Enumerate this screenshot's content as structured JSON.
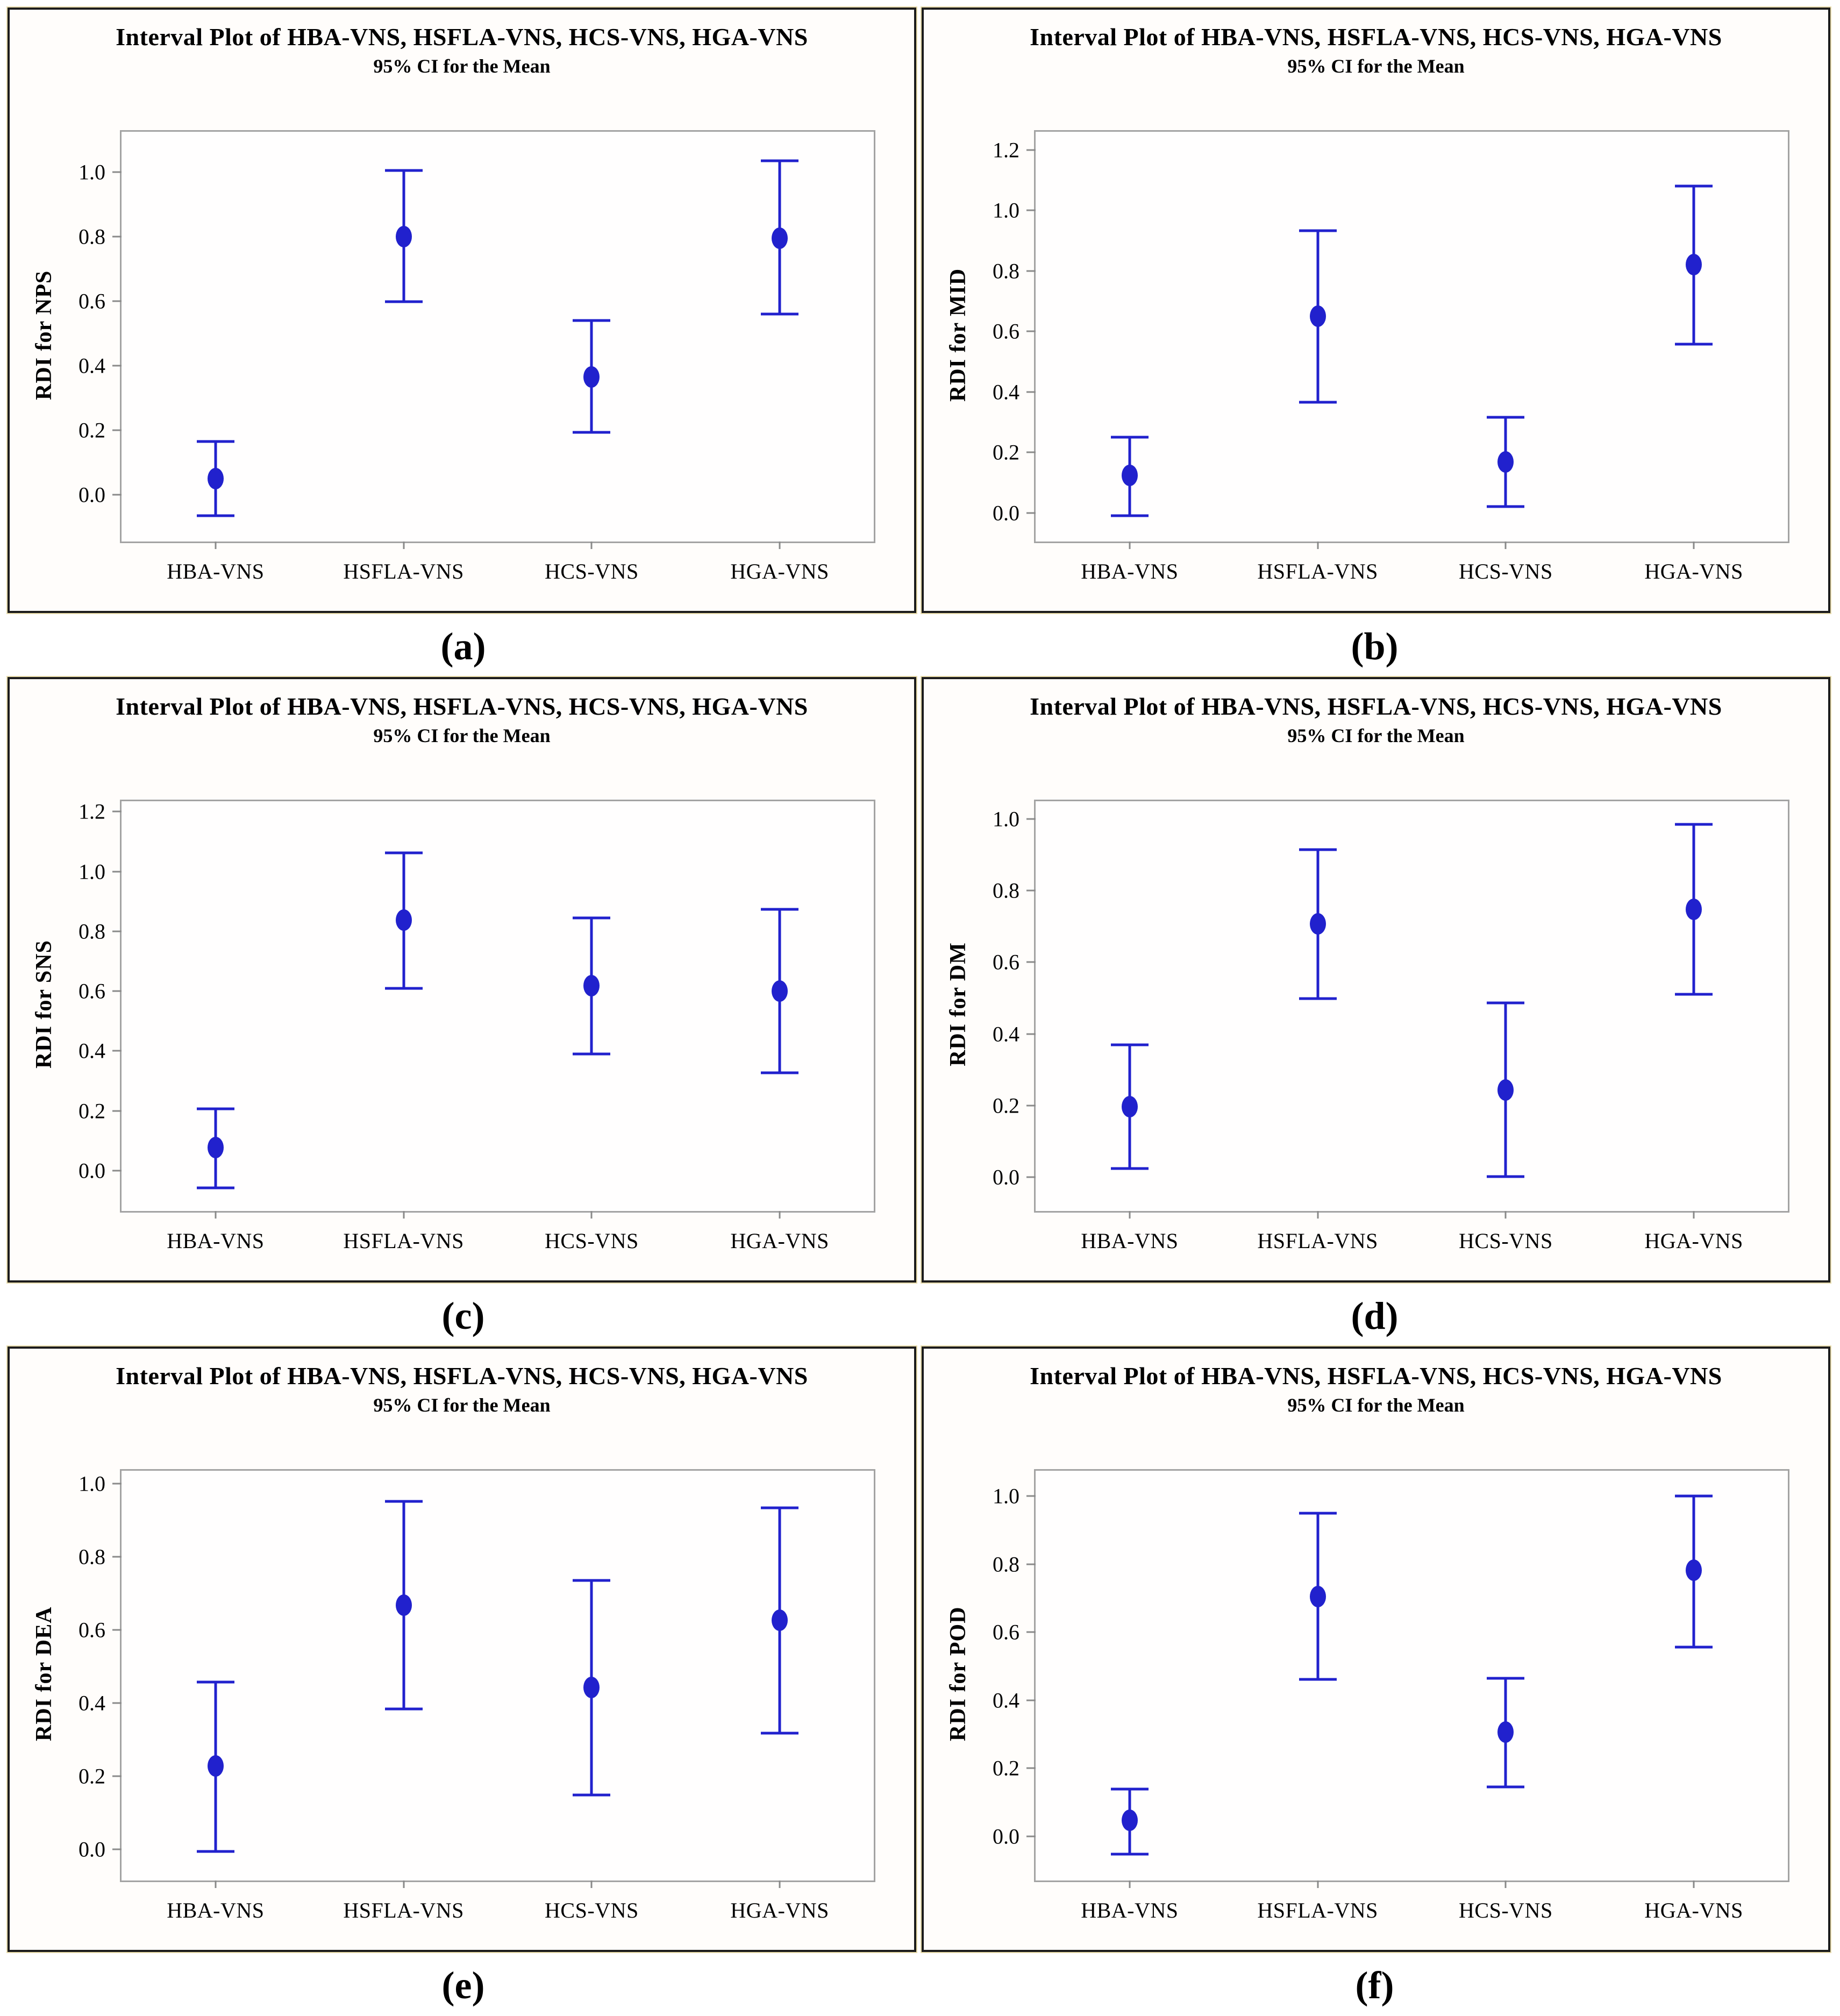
{
  "figure": {
    "subtitle_note": "95% CI for the Mean"
  },
  "colors": {
    "marker_blue": "#2121cd",
    "frame_gray": "#a3a3a3",
    "tick_gray": "#8a8a8a",
    "panel_border": "#1c1c1c",
    "panel_outline_tan": "#e8dcab",
    "text_black": "#000000"
  },
  "captions": [
    "(a)",
    "(b)",
    "(c)",
    "(d)",
    "(e)",
    "(f)"
  ],
  "chart_data": [
    {
      "type": "interval",
      "panel": "a",
      "title": "Interval Plot of HBA-VNS, HSFLA-VNS, HCS-VNS, HGA-VNS",
      "subtitle": "95% CI for the Mean",
      "ylabel": "RDI for NPS",
      "xlabel": "",
      "categories": [
        "HBA-VNS",
        "HSFLA-VNS",
        "HCS-VNS",
        "HGA-VNS"
      ],
      "means": [
        0.05,
        0.8,
        0.365,
        0.795
      ],
      "ci_low": [
        -0.065,
        0.598,
        0.193,
        0.56
      ],
      "ci_high": [
        0.165,
        1.005,
        0.54,
        1.035
      ],
      "yticks": [
        0.0,
        0.2,
        0.4,
        0.6,
        0.8,
        1.0
      ],
      "ylim": [
        -0.145,
        1.125
      ],
      "grid": false,
      "legend": "none"
    },
    {
      "type": "interval",
      "panel": "b",
      "title": "Interval Plot of HBA-VNS, HSFLA-VNS, HCS-VNS, HGA-VNS",
      "subtitle": "95% CI for the Mean",
      "ylabel": "RDI for MID",
      "xlabel": "",
      "categories": [
        "HBA-VNS",
        "HSFLA-VNS",
        "HCS-VNS",
        "HGA-VNS"
      ],
      "means": [
        0.123,
        0.65,
        0.168,
        0.82
      ],
      "ci_low": [
        -0.01,
        0.365,
        0.02,
        0.558
      ],
      "ci_high": [
        0.25,
        0.932,
        0.315,
        1.08
      ],
      "yticks": [
        0.0,
        0.2,
        0.4,
        0.6,
        0.8,
        1.0,
        1.2
      ],
      "ylim": [
        -0.095,
        1.26
      ],
      "grid": false,
      "legend": "none"
    },
    {
      "type": "interval",
      "panel": "c",
      "title": "Interval Plot of HBA-VNS, HSFLA-VNS, HCS-VNS, HGA-VNS",
      "subtitle": "95% CI for the Mean",
      "ylabel": "RDI for SNS",
      "xlabel": "",
      "categories": [
        "HBA-VNS",
        "HSFLA-VNS",
        "HCS-VNS",
        "HGA-VNS"
      ],
      "means": [
        0.078,
        0.838,
        0.618,
        0.6
      ],
      "ci_low": [
        -0.058,
        0.61,
        0.39,
        0.327
      ],
      "ci_high": [
        0.207,
        1.063,
        0.845,
        0.873
      ],
      "yticks": [
        0.0,
        0.2,
        0.4,
        0.6,
        0.8,
        1.0,
        1.2
      ],
      "ylim": [
        -0.135,
        1.235
      ],
      "grid": false,
      "legend": "none"
    },
    {
      "type": "interval",
      "panel": "d",
      "title": "Interval Plot of HBA-VNS, HSFLA-VNS, HCS-VNS, HGA-VNS",
      "subtitle": "95% CI for the Mean",
      "ylabel": "RDI for DM",
      "xlabel": "",
      "categories": [
        "HBA-VNS",
        "HSFLA-VNS",
        "HCS-VNS",
        "HGA-VNS"
      ],
      "means": [
        0.197,
        0.708,
        0.243,
        0.748
      ],
      "ci_low": [
        0.024,
        0.498,
        0.001,
        0.51
      ],
      "ci_high": [
        0.37,
        0.915,
        0.486,
        0.986
      ],
      "yticks": [
        0.0,
        0.2,
        0.4,
        0.6,
        0.8,
        1.0
      ],
      "ylim": [
        -0.095,
        1.05
      ],
      "grid": false,
      "legend": "none"
    },
    {
      "type": "interval",
      "panel": "e",
      "title": "Interval Plot of HBA-VNS, HSFLA-VNS, HCS-VNS, HGA-VNS",
      "subtitle": "95% CI for the Mean",
      "ylabel": "RDI for DEA",
      "xlabel": "",
      "categories": [
        "HBA-VNS",
        "HSFLA-VNS",
        "HCS-VNS",
        "HGA-VNS"
      ],
      "means": [
        0.228,
        0.668,
        0.442,
        0.627
      ],
      "ci_low": [
        -0.005,
        0.384,
        0.148,
        0.318
      ],
      "ci_high": [
        0.458,
        0.951,
        0.735,
        0.933
      ],
      "yticks": [
        0.0,
        0.2,
        0.4,
        0.6,
        0.8,
        1.0
      ],
      "ylim": [
        -0.085,
        1.035
      ],
      "grid": false,
      "legend": "none"
    },
    {
      "type": "interval",
      "panel": "f",
      "title": "Interval Plot of HBA-VNS, HSFLA-VNS, HCS-VNS, HGA-VNS",
      "subtitle": "95% CI for the Mean",
      "ylabel": "RDI for POD",
      "xlabel": "",
      "categories": [
        "HBA-VNS",
        "HSFLA-VNS",
        "HCS-VNS",
        "HGA-VNS"
      ],
      "means": [
        0.047,
        0.705,
        0.306,
        0.782
      ],
      "ci_low": [
        -0.053,
        0.462,
        0.145,
        0.557
      ],
      "ci_high": [
        0.139,
        0.95,
        0.465,
        1.0
      ],
      "yticks": [
        0.0,
        0.2,
        0.4,
        0.6,
        0.8,
        1.0
      ],
      "ylim": [
        -0.13,
        1.075
      ],
      "grid": false,
      "legend": "none"
    }
  ]
}
